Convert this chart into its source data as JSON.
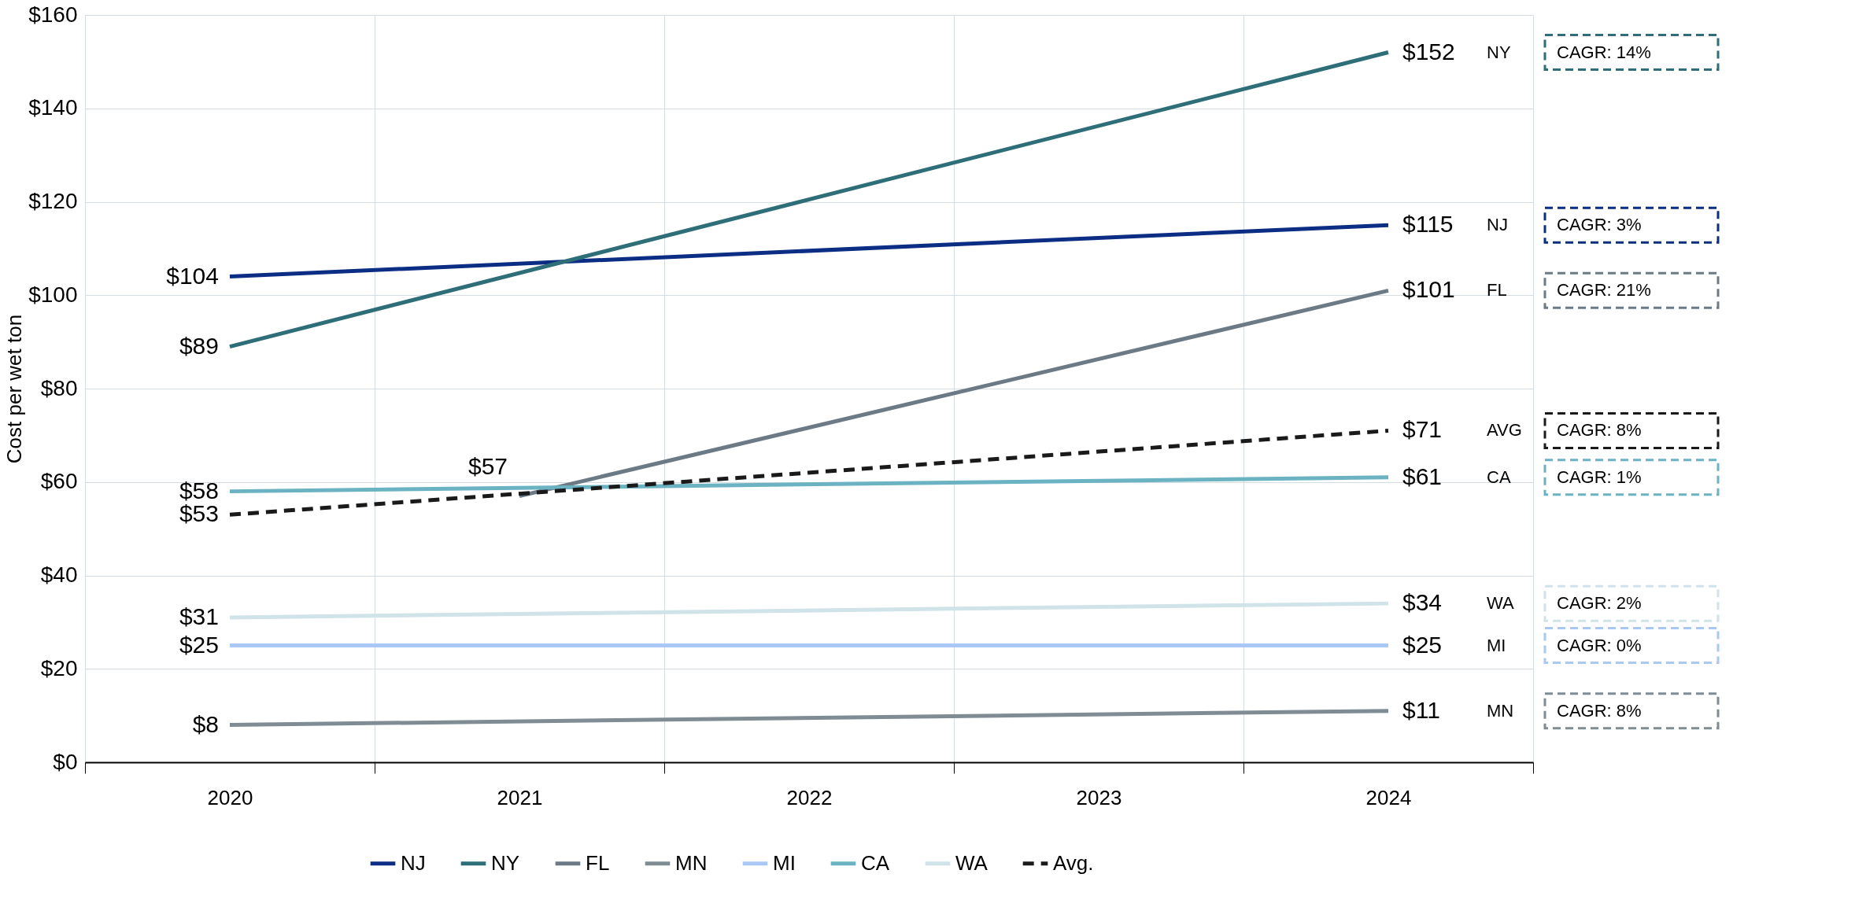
{
  "chart_data": {
    "type": "line",
    "ylabel": "Cost per wet ton",
    "categories": [
      "2020",
      "2021",
      "2022",
      "2023",
      "2024"
    ],
    "ylim": [
      0,
      160
    ],
    "yticks": [
      {
        "value": 0,
        "label": "$0"
      },
      {
        "value": 20,
        "label": "$20"
      },
      {
        "value": 40,
        "label": "$40"
      },
      {
        "value": 60,
        "label": "$60"
      },
      {
        "value": 80,
        "label": "$80"
      },
      {
        "value": 100,
        "label": "$100"
      },
      {
        "value": 120,
        "label": "$120"
      },
      {
        "value": 140,
        "label": "$140"
      },
      {
        "value": 160,
        "label": "$160"
      }
    ],
    "grid": true,
    "legend": "bottom",
    "line_style": "solid",
    "marker": "none",
    "series": [
      {
        "name": "NJ",
        "color": "#0b2d83",
        "values": [
          104,
          null,
          null,
          null,
          115
        ],
        "value_labels": [
          "$104",
          null,
          null,
          null,
          "$115"
        ]
      },
      {
        "name": "NY",
        "color": "#2e6e78",
        "values": [
          89,
          null,
          null,
          null,
          152
        ],
        "value_labels": [
          "$89",
          null,
          null,
          null,
          "$152"
        ]
      },
      {
        "name": "FL",
        "color": "#6c7a86",
        "values": [
          null,
          57,
          null,
          null,
          101
        ],
        "value_labels": [
          null,
          "$57",
          null,
          null,
          "$101"
        ]
      },
      {
        "name": "MN",
        "color": "#7f8c94",
        "values": [
          8,
          null,
          null,
          null,
          11
        ],
        "value_labels": [
          "$8",
          null,
          null,
          null,
          "$11"
        ]
      },
      {
        "name": "MI",
        "color": "#aac8f5",
        "values": [
          25,
          null,
          null,
          null,
          25
        ],
        "value_labels": [
          "$25",
          null,
          null,
          null,
          "$25"
        ]
      },
      {
        "name": "CA",
        "color": "#6bb3c2",
        "values": [
          58,
          null,
          null,
          null,
          61
        ],
        "value_labels": [
          "$58",
          null,
          null,
          null,
          "$61"
        ]
      },
      {
        "name": "WA",
        "color": "#cfe3e8",
        "values": [
          31,
          null,
          null,
          null,
          34
        ],
        "value_labels": [
          "$31",
          null,
          null,
          null,
          "$34"
        ]
      },
      {
        "name": "Avg.",
        "color": "#1a1a1a",
        "line_style": "dashed",
        "values": [
          53,
          null,
          null,
          null,
          71
        ],
        "value_labels": [
          "$53",
          null,
          null,
          null,
          "$71"
        ]
      }
    ],
    "annotations": [
      "NJ",
      "NY",
      "FL",
      "MN",
      "MI",
      "CA",
      "WA",
      "AVG",
      "CAGR: 3%",
      "CAGR: 14%",
      "CAGR: 21%",
      "CAGR: 8%",
      "CAGR: 0%",
      "CAGR: 1%",
      "CAGR: 2%",
      "CAGR: 8%"
    ]
  }
}
